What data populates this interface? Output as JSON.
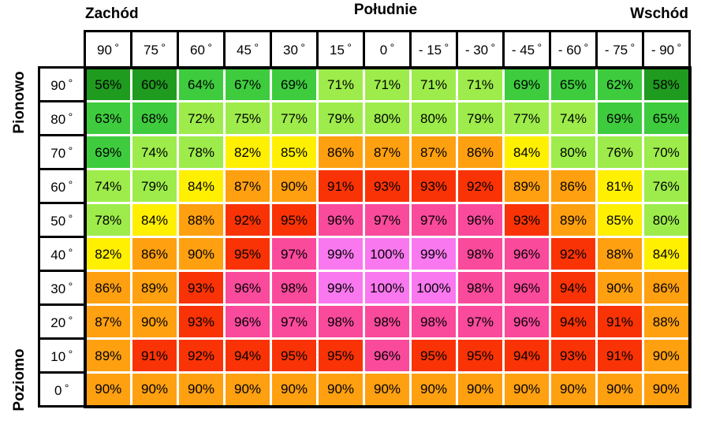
{
  "header": {
    "west": "Zachód",
    "south": "Południe",
    "east": "Wschód"
  },
  "side": {
    "vertical": "Pionowo",
    "horizontal": "Poziomo"
  },
  "chart_data": {
    "type": "heatmap",
    "unit": "%",
    "title": "",
    "col_axis_groups": [
      "Zachód",
      "Południe",
      "Wschód"
    ],
    "row_axis_groups": [
      "Pionowo",
      "Poziomo"
    ],
    "col_labels": [
      "90",
      "75",
      "60",
      "45",
      "30",
      "15",
      "0",
      "- 15",
      "- 30",
      "- 45",
      "- 60",
      "- 75",
      "- 90"
    ],
    "row_labels": [
      "90",
      "80",
      "70",
      "60",
      "50",
      "40",
      "30",
      "20",
      "10",
      "0"
    ],
    "degree_symbol": "°",
    "values": [
      [
        56,
        60,
        64,
        67,
        69,
        71,
        71,
        71,
        71,
        69,
        65,
        62,
        58
      ],
      [
        63,
        68,
        72,
        75,
        77,
        79,
        80,
        80,
        79,
        77,
        74,
        69,
        65
      ],
      [
        69,
        74,
        78,
        82,
        85,
        86,
        87,
        87,
        86,
        84,
        80,
        76,
        70
      ],
      [
        74,
        79,
        84,
        87,
        90,
        91,
        93,
        93,
        92,
        89,
        86,
        81,
        76
      ],
      [
        78,
        84,
        88,
        92,
        95,
        96,
        97,
        97,
        96,
        93,
        89,
        85,
        80
      ],
      [
        82,
        86,
        90,
        95,
        97,
        99,
        100,
        99,
        98,
        96,
        92,
        88,
        84
      ],
      [
        86,
        89,
        93,
        96,
        98,
        99,
        100,
        100,
        98,
        96,
        94,
        90,
        86
      ],
      [
        87,
        90,
        93,
        96,
        97,
        98,
        98,
        98,
        97,
        96,
        94,
        91,
        88
      ],
      [
        89,
        91,
        92,
        94,
        95,
        95,
        96,
        95,
        95,
        94,
        93,
        91,
        90
      ],
      [
        90,
        90,
        90,
        90,
        90,
        90,
        90,
        90,
        90,
        90,
        90,
        90,
        90
      ]
    ],
    "color_scale": [
      {
        "max": 60,
        "color": "#1f9b1f"
      },
      {
        "max": 69,
        "color": "#3ecc3e"
      },
      {
        "max": 80,
        "color": "#9dec4b"
      },
      {
        "max": 85,
        "color": "#ffef00"
      },
      {
        "max": 90,
        "color": "#ffa011"
      },
      {
        "max": 95,
        "color": "#f93306"
      },
      {
        "max": 98,
        "color": "#fa4a9c"
      },
      {
        "max": 100,
        "color": "#f978ef"
      }
    ],
    "text_color": "#000000"
  }
}
